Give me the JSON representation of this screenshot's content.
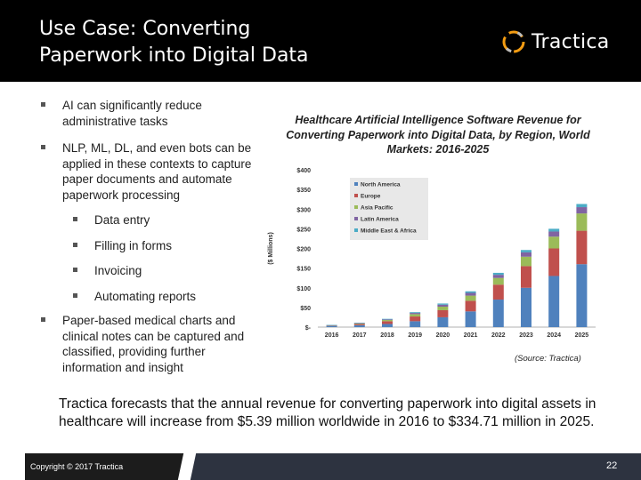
{
  "header": {
    "title_line1": "Use Case: Converting",
    "title_line2": "Paperwork into Digital Data",
    "logo_text": "Tractica"
  },
  "bullets": {
    "b1": "AI can significantly reduce administrative tasks",
    "b2": "NLP, ML, DL, and even bots can be applied in these contexts to capture paper documents and automate paperwork processing",
    "sub": [
      "Data entry",
      "Filling in forms",
      "Invoicing",
      "Automating reports"
    ],
    "b3": "Paper-based medical charts and clinical notes can be captured and classified, providing further information and insight"
  },
  "chart_title": "Healthcare Artificial Intelligence Software Revenue for Converting Paperwork into Digital Data, by Region, World Markets: 2016-2025",
  "source": "(Source: Tractica)",
  "forecast": "Tractica forecasts that the annual revenue for converting paperwork into digital assets in healthcare will increase from $5.39 million worldwide in 2016 to $334.71 million in 2025.",
  "footer": {
    "copyright": "Copyright © 2017 Tractica",
    "page": "22"
  },
  "colors": {
    "north_america": "#4f81bd",
    "europe": "#c0504d",
    "asia_pacific": "#9bbb59",
    "latin_america": "#8064a2",
    "middle_east_africa": "#4bacc6"
  },
  "chart_data": {
    "type": "bar",
    "stacked": true,
    "title": "Healthcare Artificial Intelligence Software Revenue for Converting Paperwork into Digital Data, by Region, World Markets: 2016-2025",
    "ylabel": "($ Millions)",
    "xlabel": "",
    "ylim": [
      0,
      400
    ],
    "yticks": [
      "$-",
      "$50",
      "$100",
      "$150",
      "$200",
      "$250",
      "$300",
      "$350",
      "$400"
    ],
    "categories": [
      "2016",
      "2017",
      "2018",
      "2019",
      "2020",
      "2021",
      "2022",
      "2023",
      "2024",
      "2025"
    ],
    "legend_position": "top-left",
    "series": [
      {
        "name": "North America",
        "values": [
          3,
          5,
          8,
          15,
          25,
          40,
          70,
          100,
          130,
          160
        ]
      },
      {
        "name": "Europe",
        "values": [
          1,
          3,
          7,
          12,
          18,
          27,
          38,
          55,
          70,
          85
        ]
      },
      {
        "name": "Asia Pacific",
        "values": [
          0.7,
          1.5,
          3,
          6,
          9,
          13,
          17,
          24,
          30,
          44
        ]
      },
      {
        "name": "Latin America",
        "values": [
          0.4,
          0.8,
          1.5,
          3,
          5,
          7,
          8,
          11,
          13,
          16
        ]
      },
      {
        "name": "Middle East & Africa",
        "values": [
          0.3,
          0.7,
          1.5,
          2,
          3,
          4,
          5,
          6,
          7,
          8
        ]
      }
    ]
  }
}
